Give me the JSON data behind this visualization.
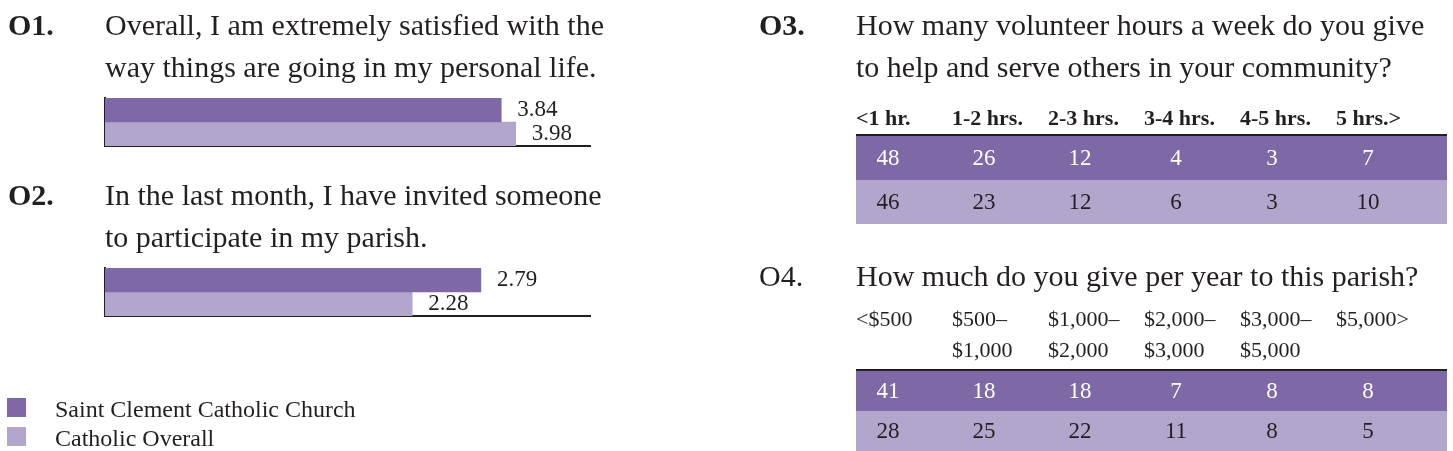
{
  "chart_data": [
    {
      "type": "bar",
      "orientation": "horizontal",
      "title": "O1.",
      "subtitle": "Overall, I am extremely satisfied with the way things are going in my personal life.",
      "categories": [
        null
      ],
      "series": [
        {
          "color": "#7f68a6",
          "values": [
            3.84
          ]
        },
        {
          "color": "#b3a6cd",
          "values": [
            3.98
          ]
        }
      ],
      "xlim": [
        0,
        4.7
      ],
      "tick_labels": false,
      "data_labels": true
    },
    {
      "type": "bar",
      "orientation": "horizontal",
      "title": "O2.",
      "subtitle": "In the last month, I have invited someone to participate in my parish.",
      "categories": [
        null
      ],
      "series": [
        {
          "name": "Saint Clement Catholic Church",
          "color": "#7f68a6",
          "values": [
            2.79
          ]
        },
        {
          "name": "Catholic Overall",
          "color": "#b3a6cd",
          "values": [
            2.28
          ]
        }
      ],
      "xlim": [
        0,
        3.6
      ],
      "tick_labels": false,
      "data_labels": true,
      "legend": "bottom left"
    },
    {
      "type": "other",
      "title": "O3.",
      "subtitle": "How many volunteer hours a week do you give to help and serve others in your community?",
      "categories": [
        "<1 hr.",
        "1-2 hrs.",
        "2-3 hrs.",
        "3-4 hrs.",
        "4-5 hrs.",
        "5 hrs.>"
      ],
      "series": [
        {
          "color": "#7f68a6",
          "values": [
            48,
            26,
            12,
            4,
            3,
            7
          ]
        },
        {
          "color": "#b3a6cd",
          "values": [
            46,
            23,
            12,
            6,
            3,
            10
          ]
        }
      ],
      "data_labels": true
    },
    {
      "type": "other",
      "title": "O4.",
      "subtitle": "How much do you give per year to this parish?",
      "categories": [
        "<$500",
        "$500–$1,000",
        "$1,000–$2,000",
        "$2,000–$3,000",
        "$3,000–$5,000",
        "$5,000>"
      ],
      "series": [
        {
          "color": "#7f68a6",
          "values": [
            41,
            18,
            18,
            7,
            8,
            8
          ]
        },
        {
          "color": "#b3a6cd",
          "values": [
            28,
            25,
            22,
            11,
            8,
            5
          ]
        }
      ],
      "data_labels": true
    }
  ]
}
